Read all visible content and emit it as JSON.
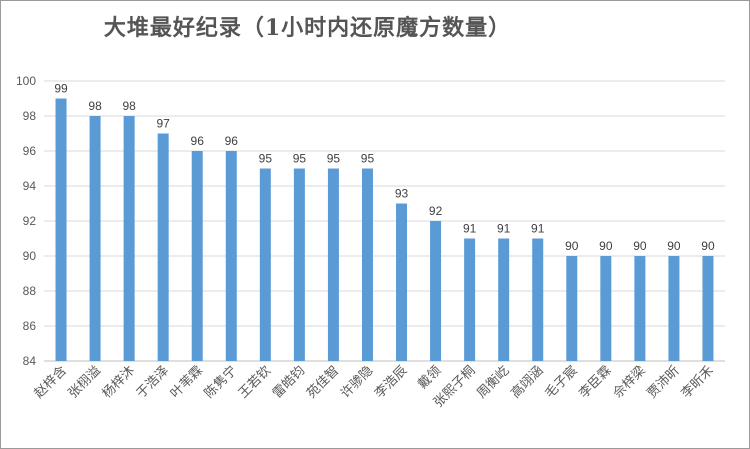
{
  "chart_data": {
    "type": "bar",
    "title": "大堆最好纪录（1小时内还原魔方数量）",
    "xlabel": "",
    "ylabel": "",
    "categories": [
      "赵梓含",
      "张栩溢",
      "杨梓沐",
      "于浩泽",
      "叶苇霖",
      "陈隽宁",
      "王若钦",
      "雷皓钧",
      "苑佳智",
      "许骖隐",
      "李浩辰",
      "戴领",
      "张熙子桐",
      "周衡屹",
      "高翊涵",
      "毛子宸",
      "李臣霖",
      "佘梓梁",
      "贾沛昕",
      "李昕禾"
    ],
    "values": [
      99,
      98,
      98,
      97,
      96,
      96,
      95,
      95,
      95,
      95,
      93,
      92,
      91,
      91,
      91,
      90,
      90,
      90,
      90,
      90
    ],
    "ylim": [
      84,
      100
    ],
    "yticks": [
      84,
      86,
      88,
      90,
      92,
      94,
      96,
      98,
      100
    ],
    "grid": true,
    "legend": "none",
    "bar_color": "#5b9bd5"
  }
}
